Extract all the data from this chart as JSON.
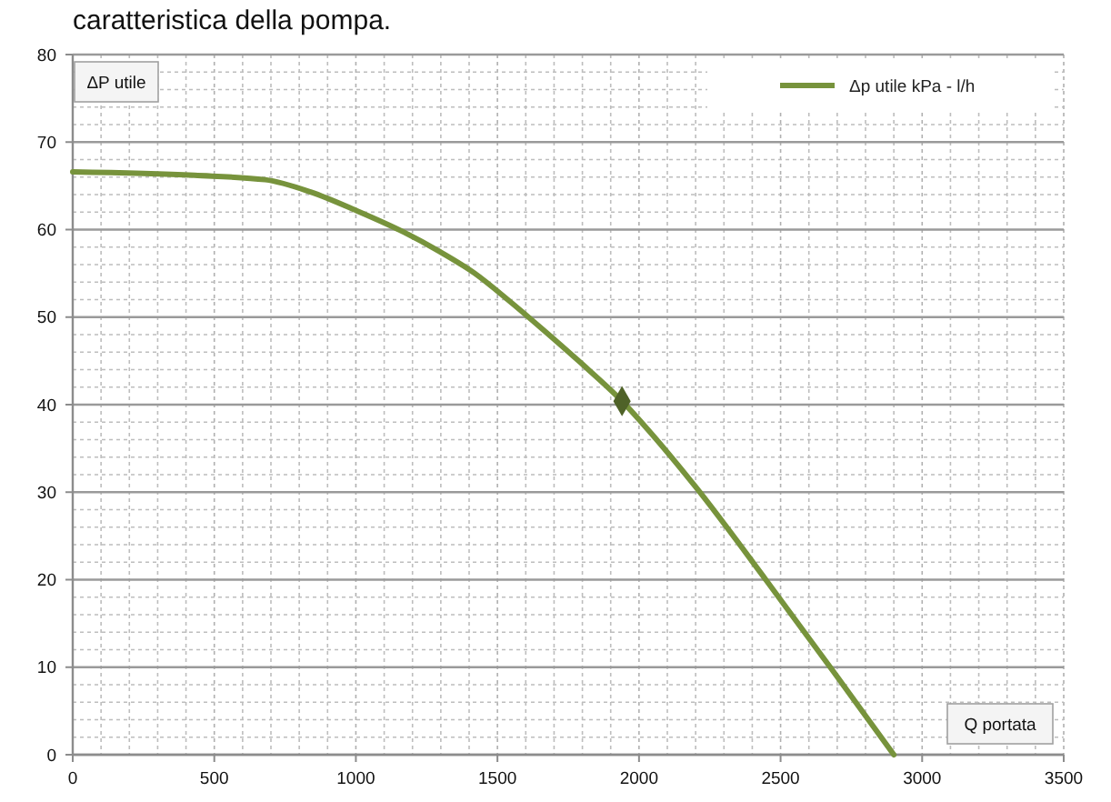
{
  "chart_data": {
    "type": "line",
    "title": "caratteristica della pompa.",
    "xlabel": "Q portata",
    "ylabel": "ΔP utile",
    "x": [
      0,
      430,
      680,
      840,
      1000,
      1170,
      1290,
      1420,
      1540,
      1660,
      1790,
      1940,
      2030,
      2200,
      2450,
      2700,
      2900
    ],
    "series": [
      {
        "name": "Δp utile kPa - l/h",
        "color": "#77933c",
        "values": [
          66.6,
          66.2,
          65.7,
          64.3,
          62.2,
          59.7,
          57.6,
          55.0,
          51.9,
          48.6,
          44.9,
          40.4,
          37.2,
          30.6,
          19.9,
          8.9,
          0
        ]
      },
      {
        "type": "scatter",
        "x": [
          1940
        ],
        "values": [
          40.4
        ],
        "color": "#4f6228",
        "marker": "diamond"
      }
    ],
    "xlim": [
      0,
      3500
    ],
    "ylim": [
      0,
      80
    ],
    "xticks": [
      0,
      {
        "value": 100,
        "label": null
      },
      {
        "value": 200,
        "label": null
      },
      {
        "value": 300,
        "label": null
      },
      {
        "value": 400,
        "label": null
      },
      500,
      {
        "value": 600,
        "label": null
      },
      {
        "value": 700,
        "label": null
      },
      {
        "value": 800,
        "label": null
      },
      {
        "value": 900,
        "label": null
      },
      1000,
      {
        "value": 1100,
        "label": null
      },
      {
        "value": 1200,
        "label": null
      },
      {
        "value": 1300,
        "label": null
      },
      {
        "value": 1400,
        "label": null
      },
      1500,
      {
        "value": 1600,
        "label": null
      },
      {
        "value": 1700,
        "label": null
      },
      {
        "value": 1800,
        "label": null
      },
      {
        "value": 1900,
        "label": null
      },
      2000,
      {
        "value": 2100,
        "label": null
      },
      {
        "value": 2200,
        "label": null
      },
      {
        "value": 2300,
        "label": null
      },
      {
        "value": 2400,
        "label": null
      },
      2500,
      {
        "value": 2600,
        "label": null
      },
      {
        "value": 2700,
        "label": null
      },
      {
        "value": 2800,
        "label": null
      },
      {
        "value": 2900,
        "label": null
      },
      3000,
      {
        "value": 3100,
        "label": null
      },
      {
        "value": 3200,
        "label": null
      },
      {
        "value": 3300,
        "label": null
      },
      {
        "value": 3400,
        "label": null
      },
      3500
    ],
    "yticks": [
      0,
      {
        "value": 2,
        "label": null
      },
      {
        "value": 4,
        "label": null
      },
      {
        "value": 6,
        "label": null
      },
      {
        "value": 8,
        "label": null
      },
      10,
      {
        "value": 12,
        "label": null
      },
      {
        "value": 14,
        "label": null
      },
      {
        "value": 16,
        "label": null
      },
      {
        "value": 18,
        "label": null
      },
      20,
      {
        "value": 22,
        "label": null
      },
      {
        "value": 24,
        "label": null
      },
      {
        "value": 26,
        "label": null
      },
      {
        "value": 28,
        "label": null
      },
      30,
      {
        "value": 32,
        "label": null
      },
      {
        "value": 34,
        "label": null
      },
      {
        "value": 36,
        "label": null
      },
      {
        "value": 38,
        "label": null
      },
      40,
      {
        "value": 42,
        "label": null
      },
      {
        "value": 44,
        "label": null
      },
      {
        "value": 46,
        "label": null
      },
      {
        "value": 48,
        "label": null
      },
      50,
      {
        "value": 52,
        "label": null
      },
      {
        "value": 54,
        "label": null
      },
      {
        "value": 56,
        "label": null
      },
      {
        "value": 58,
        "label": null
      },
      60,
      {
        "value": 62,
        "label": null
      },
      {
        "value": 64,
        "label": null
      },
      {
        "value": 66,
        "label": null
      },
      {
        "value": 68,
        "label": null
      },
      70,
      {
        "value": 72,
        "label": null
      },
      {
        "value": 74,
        "label": null
      },
      {
        "value": 76,
        "label": null
      },
      {
        "value": 78,
        "label": null
      },
      80
    ],
    "grid": true,
    "legend": "top right"
  }
}
